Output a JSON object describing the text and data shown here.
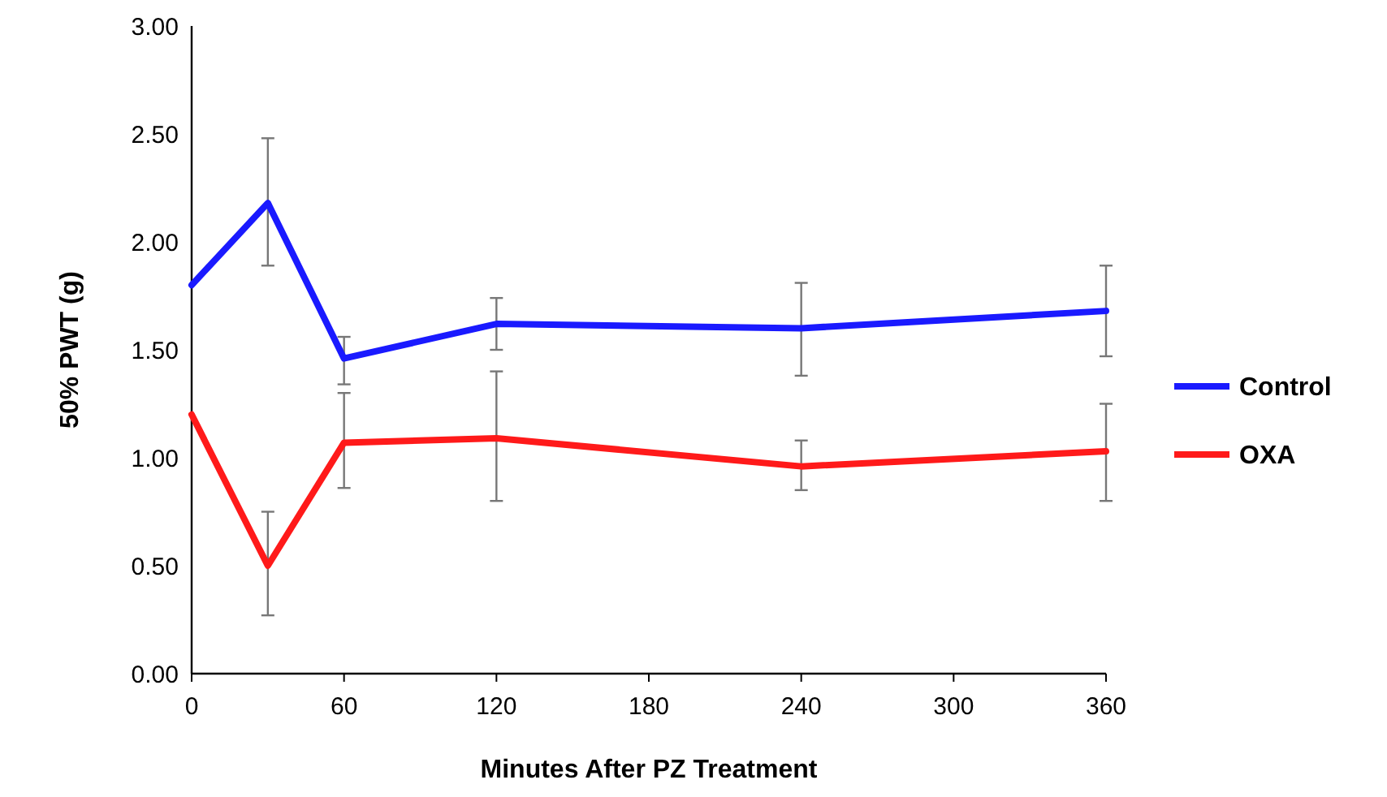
{
  "chart_data": {
    "type": "line",
    "xlabel": "Minutes After PZ Treatment",
    "ylabel": "50% PWT (g)",
    "x": [
      0,
      30,
      60,
      120,
      240,
      360
    ],
    "xlim": [
      0,
      360
    ],
    "xticks": [
      0,
      60,
      120,
      180,
      240,
      300,
      360
    ],
    "ylim": [
      0,
      3
    ],
    "yticks": [
      {
        "value": 0,
        "label": "0.00"
      },
      {
        "value": 0.5,
        "label": "0.50"
      },
      {
        "value": 1,
        "label": "1.00"
      },
      {
        "value": 1.5,
        "label": "1.50"
      },
      {
        "value": 2,
        "label": "2.00"
      },
      {
        "value": 2.5,
        "label": "2.50"
      },
      {
        "value": 3,
        "label": "3.00"
      }
    ],
    "series": [
      {
        "name": "Control",
        "color": "#1a1aff",
        "values": [
          1.8,
          2.18,
          1.46,
          1.62,
          1.6,
          1.68
        ],
        "errors": [
          null,
          [
            1.89,
            2.48
          ],
          [
            1.34,
            1.56
          ],
          [
            1.5,
            1.74
          ],
          [
            1.38,
            1.81
          ],
          [
            1.47,
            1.89
          ]
        ]
      },
      {
        "name": "OXA",
        "color": "#ff1a1a",
        "values": [
          1.2,
          0.5,
          1.07,
          1.09,
          0.96,
          1.03
        ],
        "errors": [
          null,
          [
            0.27,
            0.75
          ],
          [
            0.86,
            1.3
          ],
          [
            0.8,
            1.4
          ],
          [
            0.85,
            1.08
          ],
          [
            0.8,
            1.25
          ]
        ]
      }
    ],
    "legend": "right",
    "grid": false,
    "marker": "none",
    "line_style": "solid"
  }
}
